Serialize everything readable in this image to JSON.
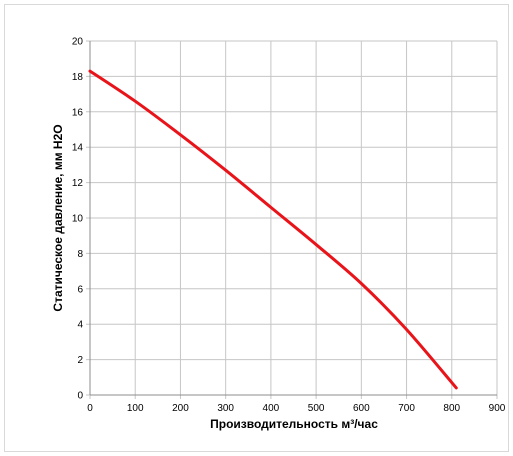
{
  "chart_data": {
    "type": "line",
    "title": "",
    "xlabel": "Производительность м³/час",
    "ylabel": "Статическое давление,  мм H2O",
    "xlim": [
      0,
      900
    ],
    "ylim": [
      0,
      20
    ],
    "x_ticks": [
      0,
      100,
      200,
      300,
      400,
      500,
      600,
      700,
      800,
      900
    ],
    "y_ticks": [
      0,
      2,
      4,
      6,
      8,
      10,
      12,
      14,
      16,
      18,
      20
    ],
    "grid": true,
    "legend": "none",
    "series": [
      {
        "color": "#e8141a",
        "x": [
          0,
          100,
          200,
          300,
          400,
          500,
          600,
          700,
          810
        ],
        "y": [
          18.3,
          16.6,
          14.7,
          12.7,
          10.6,
          8.5,
          6.3,
          3.7,
          0.4
        ]
      }
    ]
  }
}
